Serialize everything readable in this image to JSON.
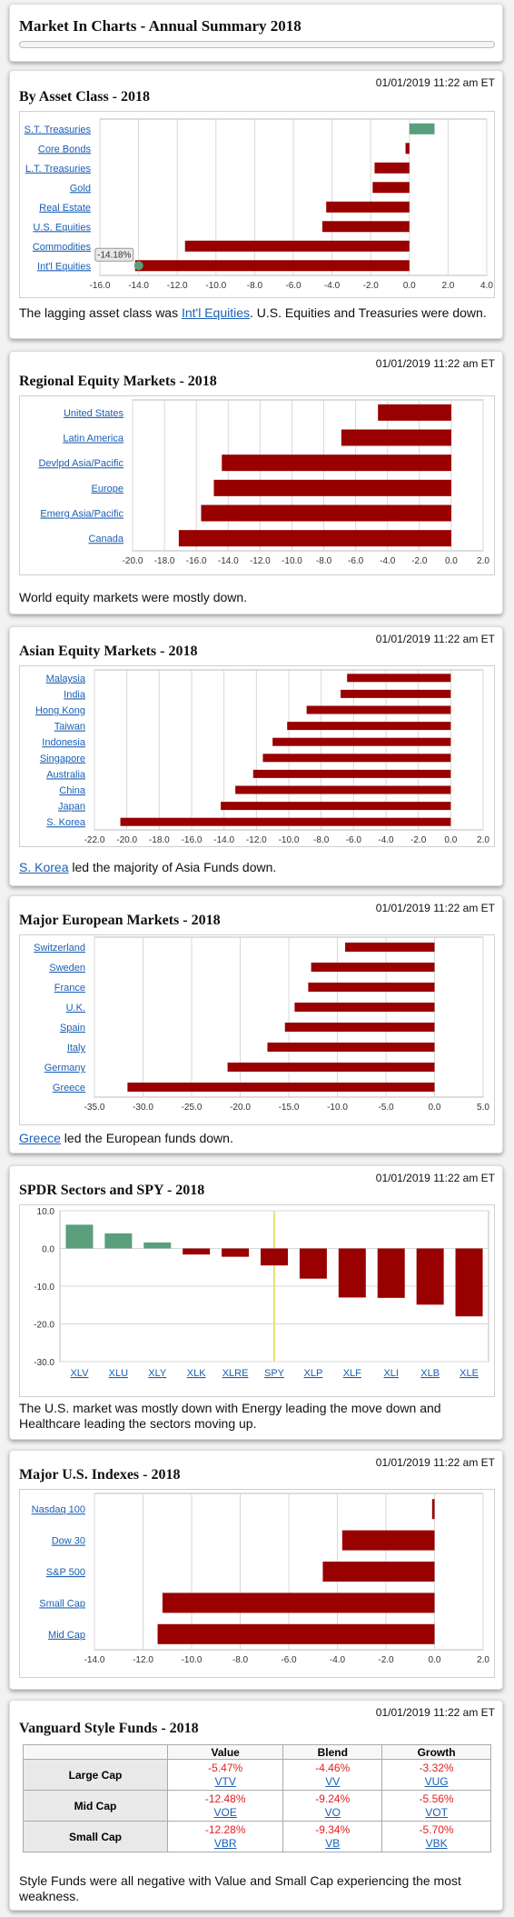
{
  "header": {
    "title": "Market In Charts - Annual Summary 2018"
  },
  "asset": {
    "title": "By Asset Class - 2018",
    "timestamp": "01/01/2019 11:22 am ET",
    "tooltip": "-14.18%",
    "caption_pre": "The lagging asset class was ",
    "caption_link": "Int'l Equities",
    "caption_post": ". U.S. Equities and Treasuries were down."
  },
  "regional": {
    "title": "Regional Equity Markets - 2018",
    "timestamp": "01/01/2019 11:22 am ET",
    "caption": "World equity markets were mostly down."
  },
  "asian": {
    "title": "Asian Equity Markets - 2018",
    "timestamp": "01/01/2019 11:22 am ET",
    "caption_link": "S. Korea",
    "caption_post": " led the majority of Asia Funds down."
  },
  "europe": {
    "title": "Major European Markets - 2018",
    "timestamp": "01/01/2019 11:22 am ET",
    "caption_link": "Greece",
    "caption_post": " led the European funds down."
  },
  "spdr": {
    "title": "SPDR Sectors and SPY - 2018",
    "timestamp": "01/01/2019 11:22 am ET",
    "caption": "The U.S. market was mostly down with Energy leading the move down and Healthcare leading the sectors moving up."
  },
  "indexes": {
    "title": "Major U.S. Indexes - 2018",
    "timestamp": "01/01/2019 11:22 am ET"
  },
  "vanguard": {
    "title": "Vanguard Style Funds - 2018",
    "timestamp": "01/01/2019 11:22 am ET",
    "columns": [
      "Value",
      "Blend",
      "Growth"
    ],
    "rows": [
      {
        "label": "Large Cap",
        "cells": [
          {
            "value": "-5.47%",
            "ticker": "VTV"
          },
          {
            "value": "-4.46%",
            "ticker": "VV"
          },
          {
            "value": "-3.32%",
            "ticker": "VUG"
          }
        ]
      },
      {
        "label": "Mid Cap",
        "cells": [
          {
            "value": "-12.48%",
            "ticker": "VOE"
          },
          {
            "value": "-9.24%",
            "ticker": "VO"
          },
          {
            "value": "-5.56%",
            "ticker": "VOT"
          }
        ]
      },
      {
        "label": "Small Cap",
        "cells": [
          {
            "value": "-12.28%",
            "ticker": "VBR"
          },
          {
            "value": "-9.34%",
            "ticker": "VB"
          },
          {
            "value": "-5.70%",
            "ticker": "VBK"
          }
        ]
      }
    ],
    "caption": "Style Funds were all negative with Value and Small Cap experiencing the most weakness."
  },
  "colors": {
    "negative": "#990000",
    "positive": "#5a9e7c",
    "grid": "#d8d8d8",
    "spy_line": "#e8e07a",
    "link": "#1a5fb4"
  },
  "chart_data": [
    {
      "type": "bar",
      "orientation": "horizontal",
      "title": "By Asset Class - 2018",
      "categories": [
        "S.T. Treasuries",
        "Core Bonds",
        "L.T. Treasuries",
        "Gold",
        "Real Estate",
        "U.S. Equities",
        "Commodities",
        "Int'l Equities"
      ],
      "values": [
        1.3,
        -0.2,
        -1.8,
        -1.9,
        -4.3,
        -4.5,
        -11.6,
        -14.18
      ],
      "xlim": [
        -16,
        4
      ],
      "ticks": [
        -16,
        -14,
        -12,
        -10,
        -8,
        -6,
        -4,
        -2,
        0,
        2,
        4
      ],
      "tick_labels": [
        "-16.0",
        "-14.0",
        "-12.0",
        "-10.0",
        "-8.0",
        "-6.0",
        "-4.0",
        "-2.0",
        "0.0",
        "2.0",
        "4.0"
      ],
      "grid": true
    },
    {
      "type": "bar",
      "orientation": "horizontal",
      "title": "Regional Equity Markets - 2018",
      "categories": [
        "United States",
        "Latin America",
        "Devlpd Asia/Pacific",
        "Europe",
        "Emerg Asia/Pacific",
        "Canada"
      ],
      "values": [
        -4.6,
        -6.9,
        -14.4,
        -14.9,
        -15.7,
        -17.1
      ],
      "xlim": [
        -20,
        2
      ],
      "ticks": [
        -20,
        -18,
        -16,
        -14,
        -12,
        -10,
        -8,
        -6,
        -4,
        -2,
        0,
        2
      ],
      "tick_labels": [
        "-20.0",
        "-18.0",
        "-16.0",
        "-14.0",
        "-12.0",
        "-10.0",
        "-8.0",
        "-6.0",
        "-4.0",
        "-2.0",
        "0.0",
        "2.0"
      ],
      "grid": true
    },
    {
      "type": "bar",
      "orientation": "horizontal",
      "title": "Asian Equity Markets - 2018",
      "categories": [
        "Malaysia",
        "India",
        "Hong Kong",
        "Taiwan",
        "Indonesia",
        "Singapore",
        "Australia",
        "China",
        "Japan",
        "S. Korea"
      ],
      "values": [
        -6.4,
        -6.8,
        -8.9,
        -10.1,
        -11.0,
        -11.6,
        -12.2,
        -13.3,
        -14.2,
        -20.4
      ],
      "xlim": [
        -22,
        2
      ],
      "ticks": [
        -22,
        -20,
        -18,
        -16,
        -14,
        -12,
        -10,
        -8,
        -6,
        -4,
        -2,
        0,
        2
      ],
      "tick_labels": [
        "-22.0",
        "-20.0",
        "-18.0",
        "-16.0",
        "-14.0",
        "-12.0",
        "-10.0",
        "-8.0",
        "-6.0",
        "-4.0",
        "-2.0",
        "0.0",
        "2.0"
      ],
      "grid": true
    },
    {
      "type": "bar",
      "orientation": "horizontal",
      "title": "Major European Markets - 2018",
      "categories": [
        "Switzerland",
        "Sweden",
        "France",
        "U.K.",
        "Spain",
        "Italy",
        "Germany",
        "Greece"
      ],
      "values": [
        -9.2,
        -12.7,
        -13.0,
        -14.4,
        -15.4,
        -17.2,
        -21.3,
        -31.6
      ],
      "xlim": [
        -35,
        5
      ],
      "ticks": [
        -35,
        -30,
        -25,
        -20,
        -15,
        -10,
        -5,
        0,
        5
      ],
      "tick_labels": [
        "-35.0",
        "-30.0",
        "-25.0",
        "-20.0",
        "-15.0",
        "-10.0",
        "-5.0",
        "0.0",
        "5.0"
      ],
      "grid": true
    },
    {
      "type": "bar",
      "orientation": "vertical",
      "title": "SPDR Sectors and SPY - 2018",
      "categories": [
        "XLV",
        "XLU",
        "XLY",
        "XLK",
        "XLRE",
        "SPY",
        "XLP",
        "XLF",
        "XLI",
        "XLB",
        "XLE"
      ],
      "values": [
        6.3,
        4.0,
        1.6,
        -1.6,
        -2.2,
        -4.5,
        -8.0,
        -13.0,
        -13.1,
        -14.9,
        -18.0
      ],
      "ylim": [
        -30,
        10
      ],
      "ticks": [
        10,
        0,
        -10,
        -20,
        -30
      ],
      "tick_labels": [
        "10.0",
        "0.0",
        "-10.0",
        "-20.0",
        "-30.0"
      ],
      "grid": true
    },
    {
      "type": "bar",
      "orientation": "horizontal",
      "title": "Major U.S. Indexes - 2018",
      "categories": [
        "Nasdaq 100",
        "Dow 30",
        "S&P 500",
        "Small Cap",
        "Mid Cap"
      ],
      "values": [
        -0.1,
        -3.8,
        -4.6,
        -11.2,
        -11.4
      ],
      "xlim": [
        -14,
        2
      ],
      "ticks": [
        -14,
        -12,
        -10,
        -8,
        -6,
        -4,
        -2,
        0,
        2
      ],
      "tick_labels": [
        "-14.0",
        "-12.0",
        "-10.0",
        "-8.0",
        "-6.0",
        "-4.0",
        "-2.0",
        "0.0",
        "2.0"
      ],
      "grid": true
    },
    {
      "type": "table",
      "title": "Vanguard Style Funds - 2018",
      "columns": [
        "Value",
        "Blend",
        "Growth"
      ],
      "rows": [
        "Large Cap",
        "Mid Cap",
        "Small Cap"
      ],
      "values": [
        [
          -5.47,
          -4.46,
          -3.32
        ],
        [
          -12.48,
          -9.24,
          -5.56
        ],
        [
          -12.28,
          -9.34,
          -5.7
        ]
      ]
    }
  ]
}
